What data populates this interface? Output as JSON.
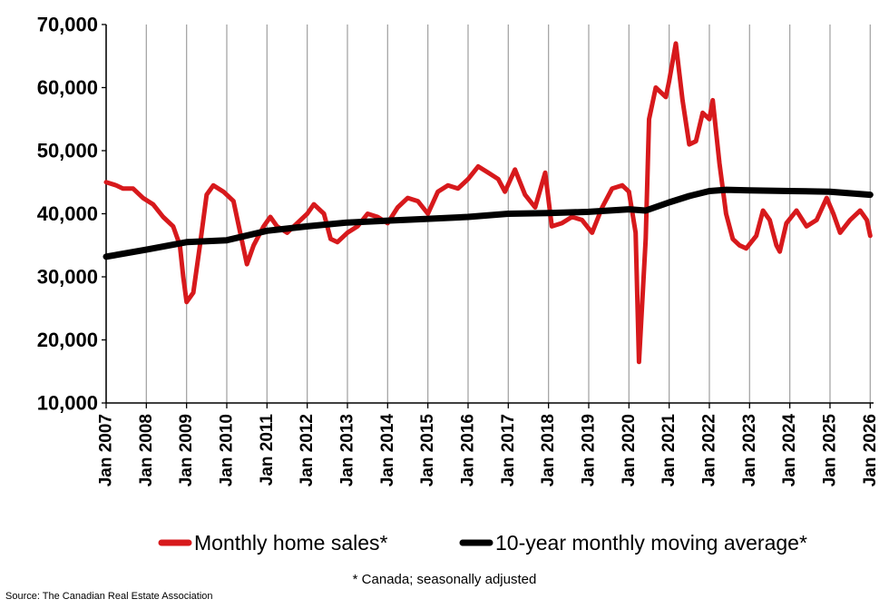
{
  "chart_data": {
    "type": "line",
    "ylim": [
      10000,
      70000
    ],
    "y_ticks": [
      "10,000",
      "20,000",
      "30,000",
      "40,000",
      "50,000",
      "60,000",
      "70,000"
    ],
    "x_ticks": [
      "Jan 2007",
      "Jan 2008",
      "Jan 2009",
      "Jan 2010",
      "Jan 2011",
      "Jan 2012",
      "Jan 2013",
      "Jan 2014",
      "Jan 2015",
      "Jan 2016",
      "Jan 2017",
      "Jan 2018",
      "Jan 2019",
      "Jan 2020",
      "Jan 2021",
      "Jan 2022",
      "Jan 2023",
      "Jan 2024",
      "Jan 2025",
      "Jan 2026"
    ],
    "grid": "vertical",
    "legend_position": "bottom",
    "series": [
      {
        "name": "Monthly home sales*",
        "color": "#d7191c",
        "points": [
          [
            "2007-01",
            45000
          ],
          [
            "2007-04",
            44500
          ],
          [
            "2007-06",
            44000
          ],
          [
            "2007-09",
            44000
          ],
          [
            "2007-12",
            42500
          ],
          [
            "2008-03",
            41500
          ],
          [
            "2008-06",
            39500
          ],
          [
            "2008-09",
            38000
          ],
          [
            "2008-11",
            35000
          ],
          [
            "2008-12",
            30000
          ],
          [
            "2009-01",
            26000
          ],
          [
            "2009-03",
            27500
          ],
          [
            "2009-05",
            35000
          ],
          [
            "2009-07",
            43000
          ],
          [
            "2009-09",
            44500
          ],
          [
            "2009-12",
            43500
          ],
          [
            "2010-03",
            42000
          ],
          [
            "2010-05",
            37000
          ],
          [
            "2010-07",
            32000
          ],
          [
            "2010-09",
            35000
          ],
          [
            "2010-12",
            38000
          ],
          [
            "2011-02",
            39500
          ],
          [
            "2011-04",
            38000
          ],
          [
            "2011-07",
            37000
          ],
          [
            "2011-10",
            38500
          ],
          [
            "2012-01",
            40000
          ],
          [
            "2012-03",
            41500
          ],
          [
            "2012-06",
            40000
          ],
          [
            "2012-08",
            36000
          ],
          [
            "2012-10",
            35500
          ],
          [
            "2013-01",
            37000
          ],
          [
            "2013-04",
            38000
          ],
          [
            "2013-07",
            40000
          ],
          [
            "2013-10",
            39500
          ],
          [
            "2014-01",
            38500
          ],
          [
            "2014-04",
            41000
          ],
          [
            "2014-07",
            42500
          ],
          [
            "2014-10",
            42000
          ],
          [
            "2015-01",
            40000
          ],
          [
            "2015-04",
            43500
          ],
          [
            "2015-07",
            44500
          ],
          [
            "2015-10",
            44000
          ],
          [
            "2016-01",
            45500
          ],
          [
            "2016-04",
            47500
          ],
          [
            "2016-07",
            46500
          ],
          [
            "2016-10",
            45500
          ],
          [
            "2016-12",
            43500
          ],
          [
            "2017-03",
            47000
          ],
          [
            "2017-06",
            43000
          ],
          [
            "2017-09",
            41000
          ],
          [
            "2017-12",
            46500
          ],
          [
            "2018-02",
            38000
          ],
          [
            "2018-05",
            38500
          ],
          [
            "2018-08",
            39500
          ],
          [
            "2018-11",
            39000
          ],
          [
            "2019-02",
            37000
          ],
          [
            "2019-05",
            41000
          ],
          [
            "2019-08",
            44000
          ],
          [
            "2019-11",
            44500
          ],
          [
            "2020-01",
            43500
          ],
          [
            "2020-03",
            37000
          ],
          [
            "2020-04",
            16500
          ],
          [
            "2020-06",
            36000
          ],
          [
            "2020-07",
            55000
          ],
          [
            "2020-09",
            60000
          ],
          [
            "2020-12",
            58500
          ],
          [
            "2021-01",
            61000
          ],
          [
            "2021-02",
            64000
          ],
          [
            "2021-03",
            67000
          ],
          [
            "2021-05",
            58000
          ],
          [
            "2021-07",
            51000
          ],
          [
            "2021-09",
            51500
          ],
          [
            "2021-11",
            56000
          ],
          [
            "2022-01",
            55000
          ],
          [
            "2022-02",
            58000
          ],
          [
            "2022-04",
            48000
          ],
          [
            "2022-06",
            40000
          ],
          [
            "2022-08",
            36000
          ],
          [
            "2022-10",
            35000
          ],
          [
            "2022-12",
            34500
          ],
          [
            "2023-03",
            36500
          ],
          [
            "2023-05",
            40500
          ],
          [
            "2023-07",
            39000
          ],
          [
            "2023-09",
            35000
          ],
          [
            "2023-10",
            34000
          ],
          [
            "2023-12",
            38500
          ],
          [
            "2024-03",
            40500
          ],
          [
            "2024-06",
            38000
          ],
          [
            "2024-09",
            39000
          ],
          [
            "2024-12",
            42500
          ],
          [
            "2025-02",
            40000
          ],
          [
            "2025-04",
            37000
          ],
          [
            "2025-07",
            39000
          ],
          [
            "2025-10",
            40500
          ],
          [
            "2025-12",
            39000
          ],
          [
            "2026-01",
            36500
          ]
        ]
      },
      {
        "name": "10-year monthly moving average*",
        "color": "#000000",
        "points": [
          [
            "2007-01",
            33200
          ],
          [
            "2008-01",
            34300
          ],
          [
            "2009-01",
            35500
          ],
          [
            "2010-01",
            35800
          ],
          [
            "2011-01",
            37300
          ],
          [
            "2012-01",
            38000
          ],
          [
            "2013-01",
            38600
          ],
          [
            "2014-01",
            38900
          ],
          [
            "2015-01",
            39200
          ],
          [
            "2016-01",
            39500
          ],
          [
            "2017-01",
            40000
          ],
          [
            "2018-01",
            40100
          ],
          [
            "2019-01",
            40300
          ],
          [
            "2020-01",
            40700
          ],
          [
            "2020-06",
            40500
          ],
          [
            "2021-01",
            41800
          ],
          [
            "2021-07",
            42800
          ],
          [
            "2022-01",
            43600
          ],
          [
            "2022-06",
            43800
          ],
          [
            "2023-01",
            43700
          ],
          [
            "2024-01",
            43600
          ],
          [
            "2025-01",
            43500
          ],
          [
            "2026-01",
            43000
          ]
        ]
      }
    ]
  },
  "note": "* Canada; seasonally adjusted",
  "source": "Source: The Canadian Real Estate Association"
}
